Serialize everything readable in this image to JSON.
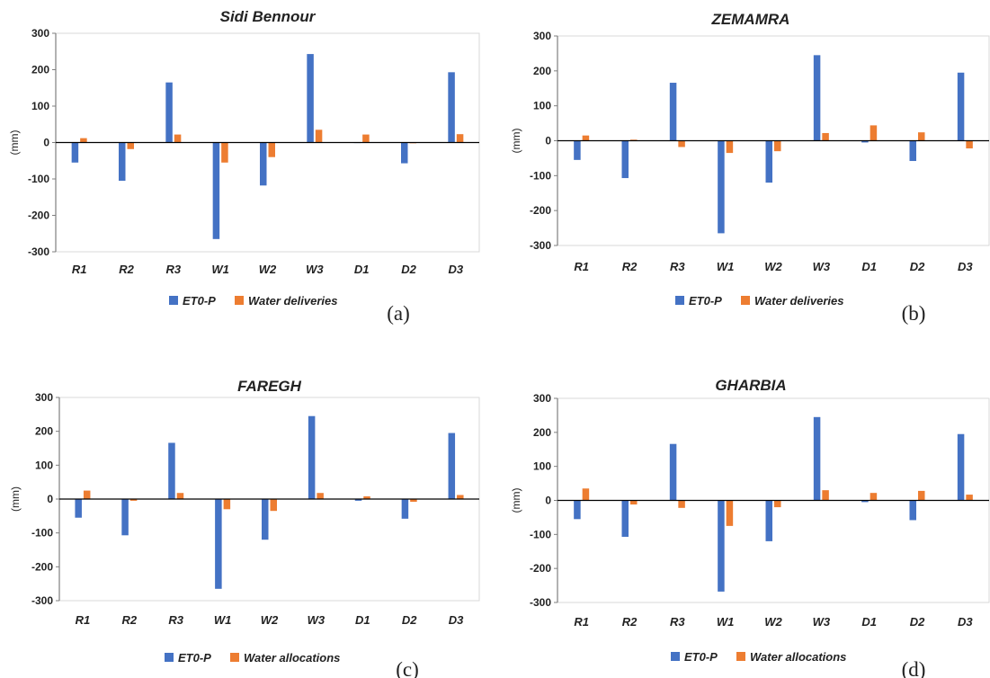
{
  "colors": {
    "et0": "#4472C4",
    "water": "#ED7D31",
    "axis": "#7f7f7f",
    "grid": "#d9d9d9"
  },
  "chart_data": [
    {
      "type": "bar",
      "title": "Sidi Bennour",
      "panel_label": "(a)",
      "ylabel": "(mm)",
      "ylim": [
        -300,
        300
      ],
      "yticks": [
        "300",
        "200",
        "100",
        "0",
        "-100",
        "-200",
        "-300"
      ],
      "categories": [
        "R1",
        "R2",
        "R3",
        "W1",
        "W2",
        "W3",
        "D1",
        "D2",
        "D3"
      ],
      "series": [
        {
          "name": "ET0-P",
          "values": [
            -55,
            -105,
            165,
            -265,
            -118,
            243,
            0,
            -57,
            193
          ]
        },
        {
          "name": "Water deliveries",
          "values": [
            12,
            -18,
            22,
            -55,
            -40,
            35,
            22,
            -2,
            23
          ]
        }
      ],
      "legend": "bottom"
    },
    {
      "type": "bar",
      "title": "ZEMAMRA",
      "panel_label": "(b)",
      "ylabel": "(mm)",
      "ylim": [
        -300,
        300
      ],
      "yticks": [
        "300",
        "200",
        "100",
        "0",
        "-100",
        "-200",
        "-300"
      ],
      "categories": [
        "R1",
        "R2",
        "R3",
        "W1",
        "W2",
        "W3",
        "D1",
        "D2",
        "D3"
      ],
      "series": [
        {
          "name": "ET0-P",
          "values": [
            -55,
            -107,
            166,
            -265,
            -120,
            245,
            -5,
            -58,
            195
          ]
        },
        {
          "name": "Water deliveries",
          "values": [
            15,
            3,
            -18,
            -35,
            -30,
            22,
            44,
            24,
            -22
          ]
        }
      ],
      "legend": "bottom"
    },
    {
      "type": "bar",
      "title": "FAREGH",
      "panel_label": "(c)",
      "ylabel": "(mm)",
      "ylim": [
        -300,
        300
      ],
      "yticks": [
        "300",
        "200",
        "100",
        "0",
        "-100",
        "-200",
        "-300"
      ],
      "categories": [
        "R1",
        "R2",
        "R3",
        "W1",
        "W2",
        "W3",
        "D1",
        "D2",
        "D3"
      ],
      "series": [
        {
          "name": "ET0-P",
          "values": [
            -55,
            -107,
            166,
            -265,
            -120,
            245,
            -5,
            -58,
            195
          ]
        },
        {
          "name": "Water allocations",
          "values": [
            25,
            -5,
            18,
            -30,
            -35,
            18,
            8,
            -8,
            12
          ]
        }
      ],
      "legend": "bottom"
    },
    {
      "type": "bar",
      "title": "GHARBIA",
      "panel_label": "(d)",
      "ylabel": "(mm)",
      "ylim": [
        -300,
        300
      ],
      "yticks": [
        "300",
        "200",
        "100",
        "0",
        "-100",
        "-200",
        "-300"
      ],
      "categories": [
        "R1",
        "R2",
        "R3",
        "W1",
        "W2",
        "W3",
        "D1",
        "D2",
        "D3"
      ],
      "series": [
        {
          "name": "ET0-P",
          "values": [
            -55,
            -107,
            166,
            -268,
            -120,
            245,
            -5,
            -58,
            195
          ]
        },
        {
          "name": "Water allocations",
          "values": [
            35,
            -12,
            -22,
            -75,
            -20,
            30,
            22,
            28,
            17
          ]
        }
      ],
      "legend": "bottom"
    }
  ]
}
